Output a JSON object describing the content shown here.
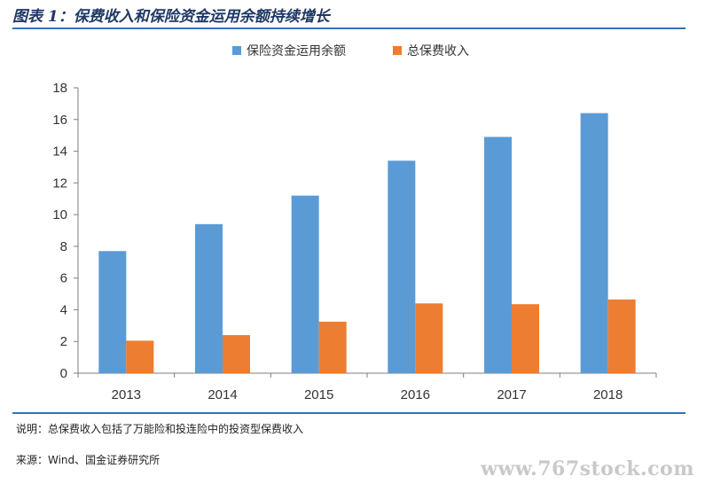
{
  "header": {
    "title": "图表 1：保费收入和保险资金运用余额持续增长"
  },
  "chart_data": {
    "type": "bar",
    "categories": [
      "2013",
      "2014",
      "2015",
      "2016",
      "2017",
      "2018"
    ],
    "series": [
      {
        "name": "保险资金运用余额",
        "color": "#5b9bd5",
        "values": [
          7.7,
          9.4,
          11.2,
          13.4,
          14.9,
          16.4
        ]
      },
      {
        "name": "总保费收入",
        "color": "#ed7d31",
        "values": [
          2.05,
          2.4,
          3.25,
          4.4,
          4.35,
          4.65
        ]
      }
    ],
    "ylim": [
      0,
      18
    ],
    "yticks": [
      "0",
      "2",
      "4",
      "6",
      "8",
      "10",
      "12",
      "14",
      "16",
      "18"
    ],
    "legend_position": "top-center",
    "grid": false
  },
  "footer": {
    "note": "说明：总保费收入包括了万能险和投连险中的投资型保费收入",
    "source": "来源：Wind、国金证券研究所"
  },
  "watermark": "www.767stock.com"
}
